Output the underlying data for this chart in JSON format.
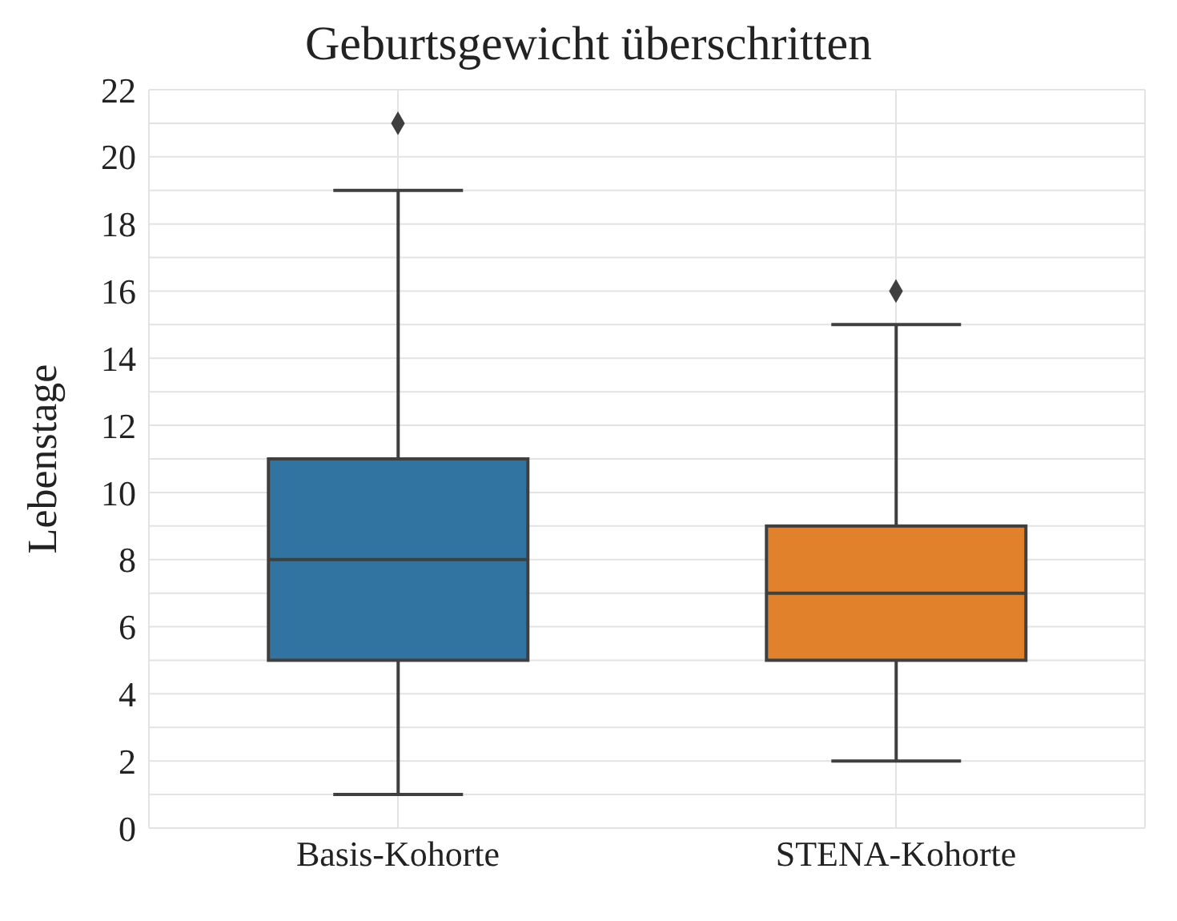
{
  "chart_data": {
    "type": "box",
    "title": "Geburtsgewicht überschritten",
    "ylabel": "Lebenstage",
    "categories": [
      "Basis-Kohorte",
      "STENA-Kohorte"
    ],
    "boxes": [
      {
        "low": 1,
        "q1": 5,
        "median": 8,
        "q3": 11,
        "high": 19,
        "outliers": [
          21
        ]
      },
      {
        "low": 2,
        "q1": 5,
        "median": 7,
        "q3": 9,
        "high": 15,
        "outliers": [
          16
        ]
      }
    ],
    "colors": [
      "#3274a1",
      "#e1812c"
    ],
    "ylim": [
      0,
      22
    ],
    "yticks": [
      0,
      {
        "value": 1,
        "label": null
      },
      2,
      {
        "value": 3,
        "label": null
      },
      4,
      {
        "value": 5,
        "label": null
      },
      6,
      {
        "value": 7,
        "label": null
      },
      8,
      {
        "value": 9,
        "label": null
      },
      10,
      {
        "value": 11,
        "label": null
      },
      12,
      {
        "value": 13,
        "label": null
      },
      14,
      {
        "value": 15,
        "label": null
      },
      16,
      {
        "value": 17,
        "label": null
      },
      18,
      {
        "value": 19,
        "label": null
      },
      20,
      {
        "value": 21,
        "label": null
      },
      22
    ],
    "grid": true,
    "marker": "diamond"
  }
}
